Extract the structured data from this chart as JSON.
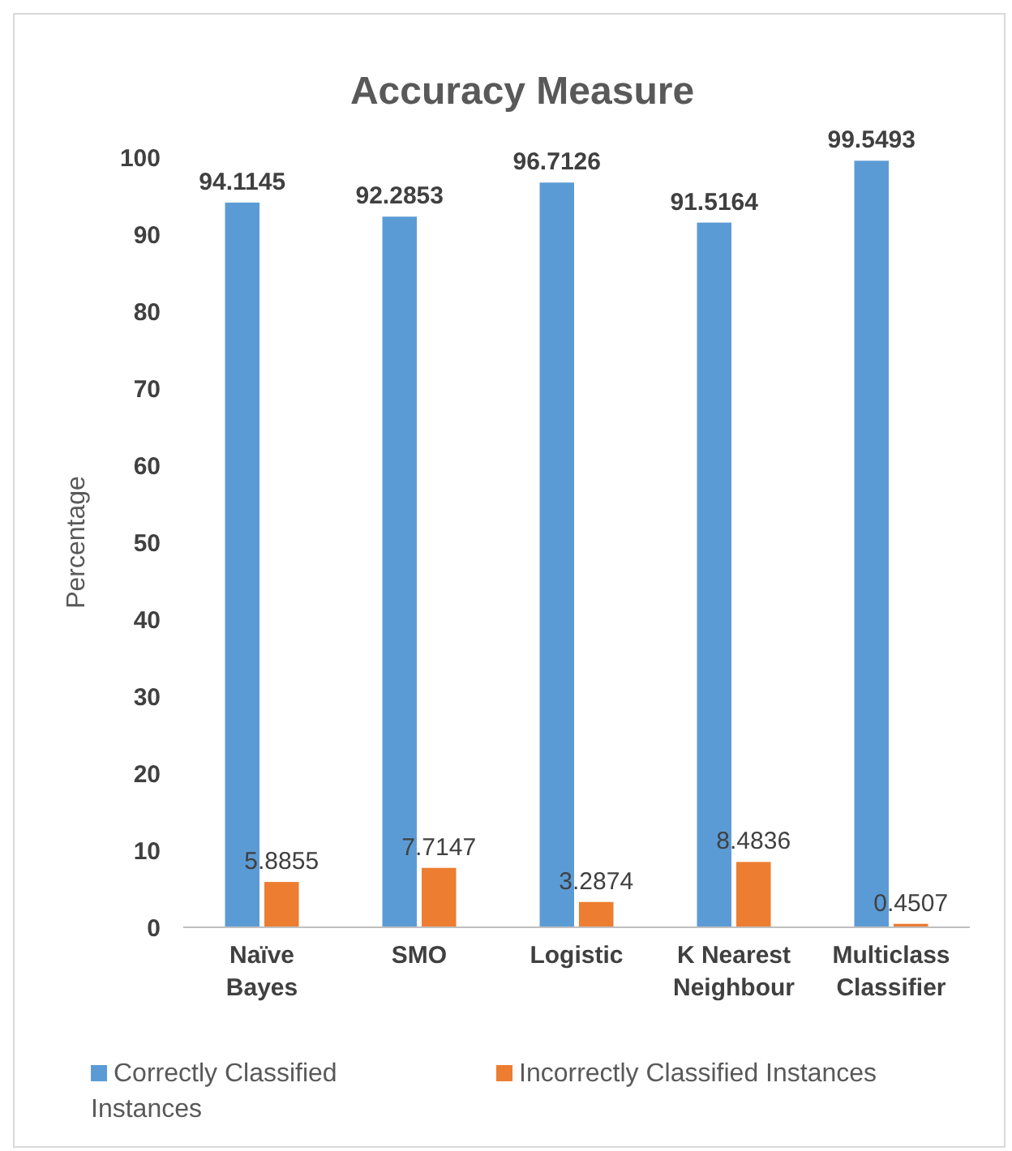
{
  "chart_data": {
    "type": "bar",
    "title": "Accuracy Measure",
    "ylabel": "Percentage",
    "categories": [
      "Naïve Bayes",
      "SMO",
      "Logistic",
      "K Nearest Neighbour",
      "Multiclass Classifier"
    ],
    "series": [
      {
        "name": "Correctly Classified Instances",
        "color": "#5b9bd5",
        "values": [
          94.1145,
          92.2853,
          96.7126,
          91.5164,
          99.5493
        ]
      },
      {
        "name": "Incorrectly Classified Instances",
        "color": "#ed7d31",
        "values": [
          5.8855,
          7.7147,
          3.2874,
          8.4836,
          0.4507
        ]
      }
    ],
    "ylim": [
      0,
      100
    ],
    "yticks": [
      0,
      10,
      20,
      30,
      40,
      50,
      60,
      70,
      80,
      90,
      100
    ],
    "grid": false,
    "legend": "bottom",
    "data_labels": true
  }
}
